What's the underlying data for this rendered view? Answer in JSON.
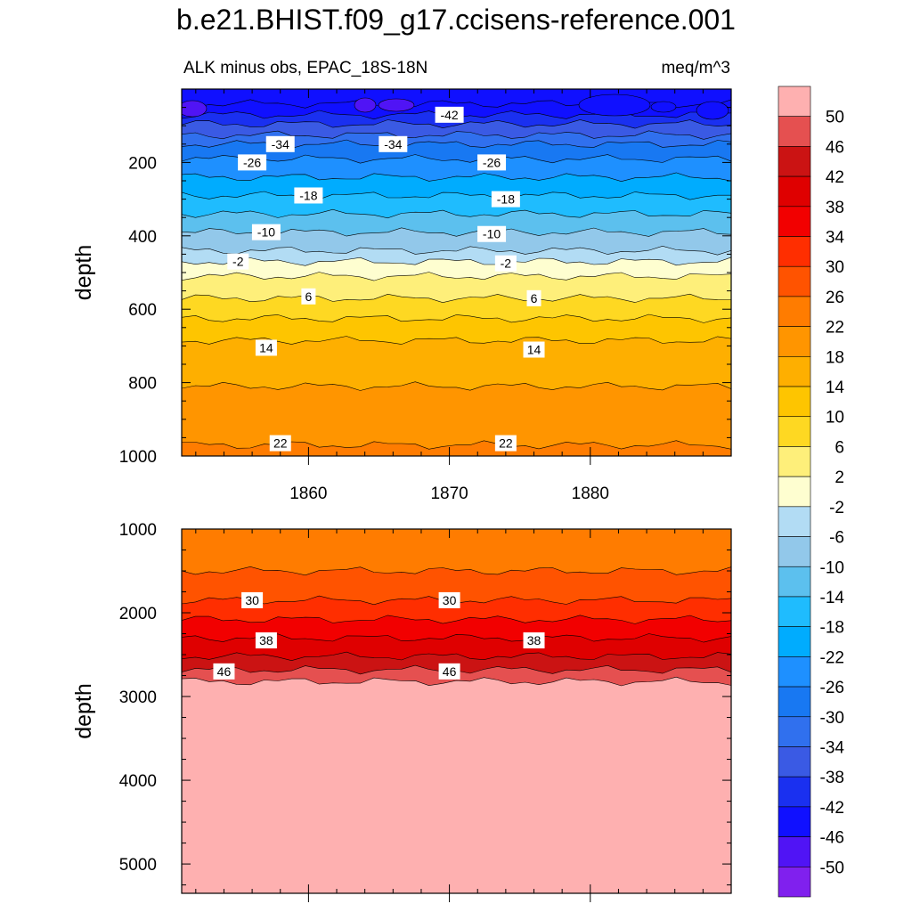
{
  "chart_data": {
    "type": "contour",
    "title": "b.e21.BHIST.f09_g17.ccisens-reference.001",
    "subtitle_left": "ALK minus obs, EPAC_18S-18N",
    "subtitle_right": "meq/m^3",
    "units": "meq/m^3",
    "x": {
      "range": [
        1851,
        1890
      ],
      "tick_labels": [
        "1860",
        "1870",
        "1880"
      ],
      "ticks": [
        1860,
        1870,
        1880
      ]
    },
    "panels": [
      {
        "name": "upper",
        "ylabel": "depth",
        "ylim": [
          0,
          1000
        ],
        "y_tick_labels": [
          "200",
          "400",
          "600",
          "800",
          "1000"
        ],
        "y_ticks": [
          200,
          400,
          600,
          800,
          1000
        ],
        "contours": [
          {
            "level": -46,
            "depth": 40
          },
          {
            "level": -42,
            "depth": 70
          },
          {
            "level": -38,
            "depth": 95
          },
          {
            "level": -34,
            "depth": 125
          },
          {
            "level": -30,
            "depth": 150
          },
          {
            "level": -26,
            "depth": 190
          },
          {
            "level": -22,
            "depth": 240
          },
          {
            "level": -18,
            "depth": 290
          },
          {
            "level": -14,
            "depth": 340
          },
          {
            "level": -10,
            "depth": 390
          },
          {
            "level": -6,
            "depth": 440
          },
          {
            "level": -2,
            "depth": 470
          },
          {
            "level": 2,
            "depth": 510
          },
          {
            "level": 6,
            "depth": 570
          },
          {
            "level": 10,
            "depth": 625
          },
          {
            "level": 14,
            "depth": 685
          },
          {
            "level": 18,
            "depth": 810
          },
          {
            "level": 22,
            "depth": 970
          }
        ],
        "contour_labels": [
          {
            "text": "-42",
            "x": 1870,
            "depth": 70
          },
          {
            "text": "-34",
            "x": 1858,
            "depth": 150
          },
          {
            "text": "-34",
            "x": 1866,
            "depth": 150
          },
          {
            "text": "-26",
            "x": 1856,
            "depth": 200
          },
          {
            "text": "-26",
            "x": 1873,
            "depth": 200
          },
          {
            "text": "-18",
            "x": 1860,
            "depth": 290
          },
          {
            "text": "-18",
            "x": 1874,
            "depth": 300
          },
          {
            "text": "-10",
            "x": 1857,
            "depth": 390
          },
          {
            "text": "-10",
            "x": 1873,
            "depth": 395
          },
          {
            "text": "-2",
            "x": 1855,
            "depth": 470
          },
          {
            "text": "-2",
            "x": 1874,
            "depth": 475
          },
          {
            "text": "6",
            "x": 1860,
            "depth": 565
          },
          {
            "text": "6",
            "x": 1876,
            "depth": 570
          },
          {
            "text": "14",
            "x": 1857,
            "depth": 705
          },
          {
            "text": "14",
            "x": 1876,
            "depth": 710
          },
          {
            "text": "22",
            "x": 1858,
            "depth": 965
          },
          {
            "text": "22",
            "x": 1874,
            "depth": 965
          }
        ]
      },
      {
        "name": "lower",
        "ylabel": "depth",
        "ylim": [
          1000,
          5350
        ],
        "y_tick_labels": [
          "1000",
          "2000",
          "3000",
          "4000",
          "5000"
        ],
        "y_ticks": [
          1000,
          2000,
          3000,
          4000,
          5000
        ],
        "contours": [
          {
            "level": 26,
            "depth": 1500
          },
          {
            "level": 30,
            "depth": 1850
          },
          {
            "level": 34,
            "depth": 2080
          },
          {
            "level": 38,
            "depth": 2300
          },
          {
            "level": 42,
            "depth": 2520
          },
          {
            "level": 46,
            "depth": 2680
          },
          {
            "level": 50,
            "depth": 2820
          }
        ],
        "contour_labels": [
          {
            "text": "30",
            "x": 1856,
            "depth": 1850
          },
          {
            "text": "30",
            "x": 1870,
            "depth": 1850
          },
          {
            "text": "38",
            "x": 1857,
            "depth": 2330
          },
          {
            "text": "38",
            "x": 1876,
            "depth": 2330
          },
          {
            "text": "46",
            "x": 1854,
            "depth": 2700
          },
          {
            "text": "46",
            "x": 1870,
            "depth": 2700
          }
        ]
      }
    ],
    "colorbar": {
      "labels": [
        "50",
        "46",
        "42",
        "38",
        "34",
        "30",
        "26",
        "22",
        "18",
        "14",
        "10",
        "6",
        "2",
        "-2",
        "-6",
        "-10",
        "-14",
        "-18",
        "-22",
        "-26",
        "-30",
        "-34",
        "-38",
        "-42",
        "-46",
        "-50"
      ],
      "colors": [
        "#feb0b0",
        "#e55050",
        "#cb1313",
        "#df0000",
        "#f20000",
        "#ff2e00",
        "#ff5300",
        "#ff7c00",
        "#ff9500",
        "#feaf00",
        "#fec500",
        "#fed822",
        "#feef7a",
        "#fefed0",
        "#b2dcf4",
        "#92c8ea",
        "#5cc0ee",
        "#1fbcfe",
        "#00acfe",
        "#1e90ff",
        "#1878f2",
        "#3070ee",
        "#3a5ae4",
        "#1a30f0",
        "#1010ff",
        "#5014f5",
        "#8020ee"
      ]
    }
  }
}
